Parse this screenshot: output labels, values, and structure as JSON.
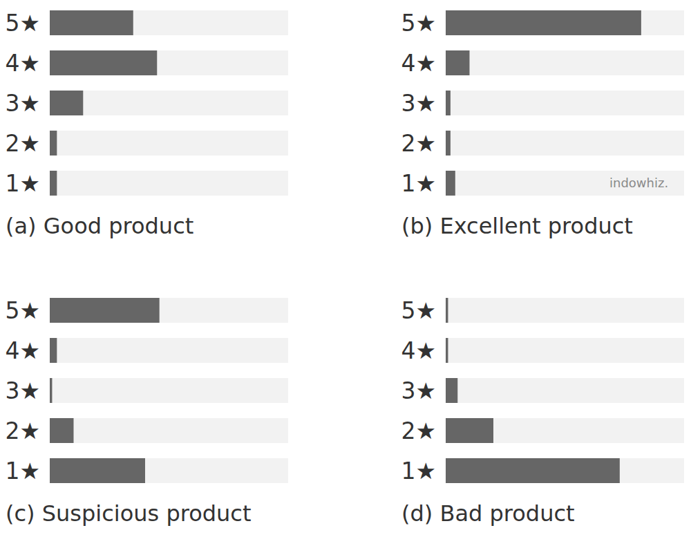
{
  "chart_data": [
    {
      "type": "bar",
      "orientation": "horizontal",
      "title": "(a) Good product",
      "categories": [
        "5★",
        "4★",
        "3★",
        "2★",
        "1★"
      ],
      "values": [
        35,
        45,
        14,
        3,
        3
      ],
      "color": "#666666",
      "xlim": [
        0,
        100
      ],
      "tick_labels": "y"
    },
    {
      "type": "bar",
      "orientation": "horizontal",
      "title": "(b) Excellent product",
      "categories": [
        "5★",
        "4★",
        "3★",
        "2★",
        "1★"
      ],
      "values": [
        82,
        10,
        2,
        2,
        4
      ],
      "color": "#666666",
      "xlim": [
        0,
        100
      ],
      "tick_labels": "y"
    },
    {
      "type": "bar",
      "orientation": "horizontal",
      "title": "(c) Suspicious product",
      "categories": [
        "5★",
        "4★",
        "3★",
        "2★",
        "1★"
      ],
      "values": [
        46,
        3,
        1,
        10,
        40
      ],
      "color": "#666666",
      "xlim": [
        0,
        100
      ],
      "tick_labels": "y"
    },
    {
      "type": "bar",
      "orientation": "horizontal",
      "title": "(d) Bad product",
      "categories": [
        "5★",
        "4★",
        "3★",
        "2★",
        "1★"
      ],
      "values": [
        1,
        1,
        5,
        20,
        73
      ],
      "color": "#666666",
      "xlim": [
        0,
        100
      ],
      "tick_labels": "y"
    }
  ],
  "watermark": "indowhiz."
}
